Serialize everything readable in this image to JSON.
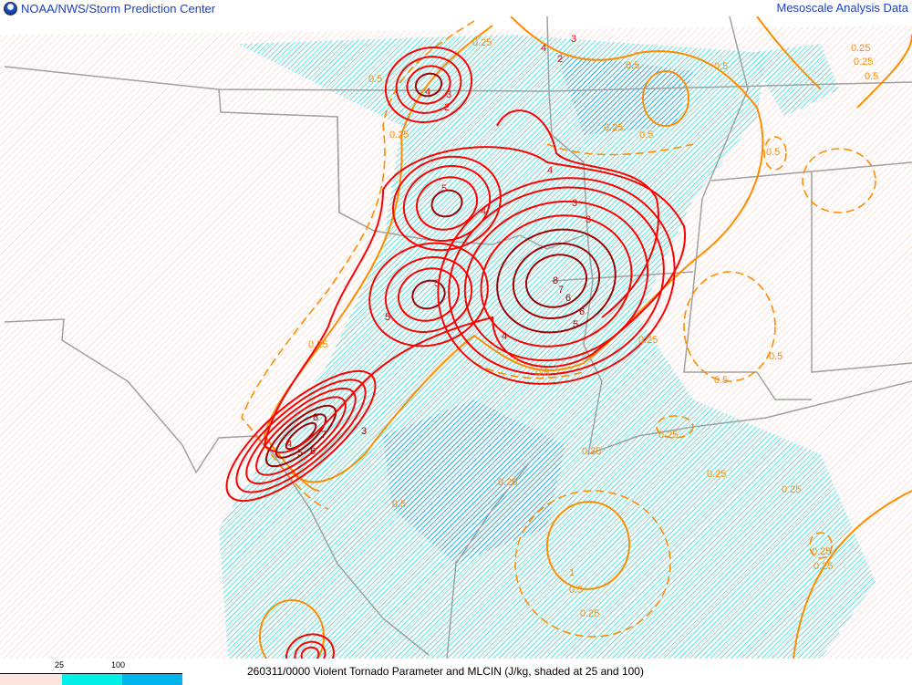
{
  "header": {
    "left_title": "NOAA/NWS/Storm Prediction Center",
    "right_title": "Mesoscale Analysis Data",
    "logo": "noaa-logo"
  },
  "footer": {
    "caption": "260311/0000 Violent Tornado Parameter and MLCIN (J/kg, shaded at 25 and 100)",
    "colorbar": {
      "labels": [
        "25",
        "100"
      ],
      "colors": [
        "#fce4dc",
        "#00f0e8",
        "#00b4ec"
      ]
    }
  },
  "map": {
    "colors": {
      "background": "#ffffff",
      "border": "#a0a0a0",
      "vtp_low": "#ff0000",
      "vtp_high": "#a00000",
      "mlcin": "#ff8c00",
      "cin_lt25": "#fce4dc",
      "cin_25": "#00f0e8",
      "cin_100": "#00b4ec"
    },
    "vtp_labels": [
      "4",
      "3",
      "2",
      "3",
      "4",
      "4",
      "5",
      "4",
      "3",
      "5",
      "5",
      "6",
      "7",
      "8",
      "6",
      "5",
      "4",
      "3",
      "8",
      "7",
      "6",
      "5",
      "4",
      "2",
      "3"
    ],
    "mlcin_labels": [
      "0.25",
      "0.5",
      "0.25",
      "0.5",
      "0.5",
      "0.25",
      "0.5",
      "0.5",
      "0.25",
      "0.25",
      "0.5",
      "0.25",
      "0.5",
      "0.25",
      "0.25",
      "0.25",
      "0.25",
      "0.25",
      "0.5",
      "0.25",
      "0.5",
      "1",
      "0.5",
      "0.25",
      "0.25",
      "0.5",
      "0.25",
      "3"
    ]
  }
}
